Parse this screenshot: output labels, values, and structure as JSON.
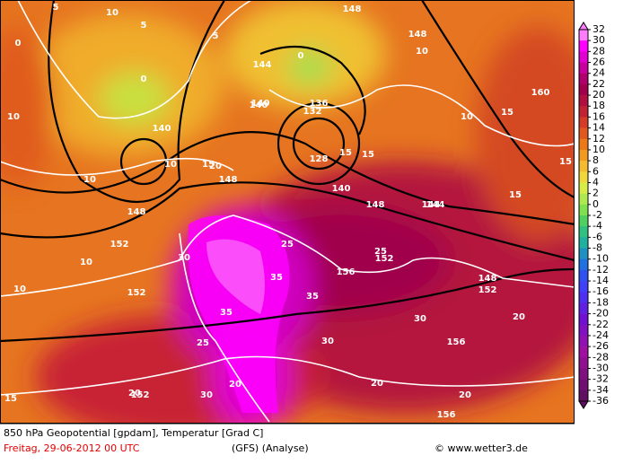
{
  "caption": {
    "line1": "850 hPa Geopotential [gpdam], Temperatur [Grad C]",
    "date": "Freitag, 29-06-2012  00 UTC",
    "model": "(GFS)   (Analyse)",
    "source": "© www.wetter3.de"
  },
  "colorbar": {
    "ticks": [
      32,
      30,
      28,
      26,
      24,
      22,
      20,
      18,
      16,
      14,
      12,
      10,
      8,
      6,
      4,
      2,
      0,
      -2,
      -4,
      -6,
      -8,
      -10,
      -12,
      -14,
      -16,
      -18,
      -20,
      -22,
      -24,
      -26,
      -28,
      -30,
      -32,
      -34,
      -36
    ],
    "colors": [
      "#ff7cff",
      "#ff00ff",
      "#e000d0",
      "#c8009c",
      "#b0006c",
      "#a0004c",
      "#b01040",
      "#c02434",
      "#d43c28",
      "#e0581e",
      "#ec7818",
      "#f29a20",
      "#f4ba30",
      "#f0d83c",
      "#d8ec48",
      "#b0e850",
      "#80e050",
      "#50d060",
      "#30c080",
      "#20b0a0",
      "#2090c0",
      "#2070e0",
      "#3050f0",
      "#4040f8",
      "#5030f0",
      "#6020e0",
      "#7010d0",
      "#8010c0",
      "#9010b0",
      "#a010a0",
      "#901090",
      "#801080",
      "#701070",
      "#601060"
    ]
  },
  "contour_labels": [
    5,
    5,
    0,
    0,
    140,
    10,
    5,
    0,
    10,
    140,
    148,
    144,
    10,
    136,
    132,
    128,
    15,
    148,
    140,
    10,
    15,
    15,
    15,
    140,
    144,
    148,
    160,
    15,
    15,
    10,
    148,
    152,
    10,
    30,
    25,
    35,
    148,
    152,
    156,
    25,
    152,
    35,
    35,
    30,
    30,
    25,
    20,
    20,
    20,
    156,
    20,
    20,
    30,
    156,
    152,
    10,
    10,
    15,
    144,
    20,
    152,
    148
  ]
}
